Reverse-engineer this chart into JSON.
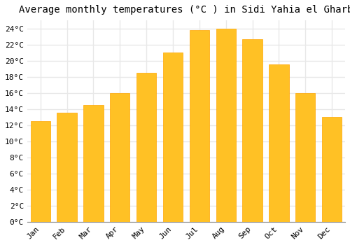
{
  "title": "Average monthly temperatures (°C ) in Sidi Yahia el Gharb",
  "months": [
    "Jan",
    "Feb",
    "Mar",
    "Apr",
    "May",
    "Jun",
    "Jul",
    "Aug",
    "Sep",
    "Oct",
    "Nov",
    "Dec"
  ],
  "values": [
    12.5,
    13.5,
    14.5,
    16.0,
    18.5,
    21.0,
    23.8,
    24.0,
    22.7,
    19.5,
    16.0,
    13.0
  ],
  "bar_color": "#FFC125",
  "bar_edge_color": "#FFA500",
  "background_color": "#FFFFFF",
  "grid_color": "#E8E8E8",
  "ylim": [
    0,
    25
  ],
  "ytick_max": 24,
  "ytick_step": 2,
  "title_fontsize": 10,
  "tick_fontsize": 8,
  "font_family": "monospace"
}
